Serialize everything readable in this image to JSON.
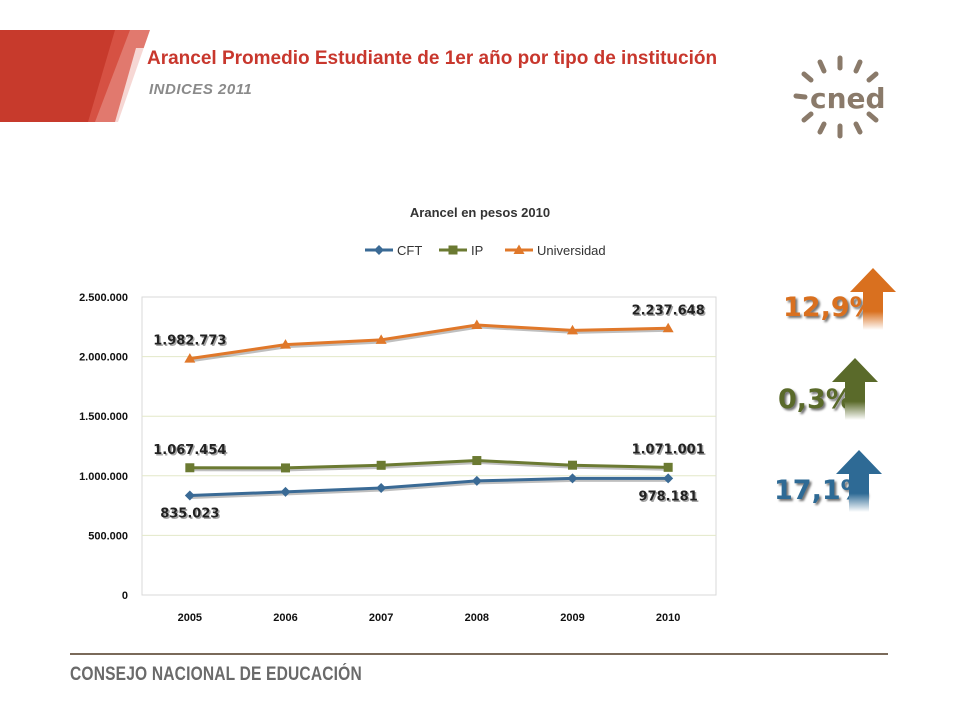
{
  "slide": {
    "title": "Arancel Promedio Estudiante de 1er año por tipo de institución",
    "subtitle": "INDICES 2011",
    "logo_text": "cned",
    "footer": "CONSEJO NACIONAL DE EDUCACIÓN"
  },
  "changes": [
    {
      "label": "12,9%",
      "color": "#d9701f",
      "series": "Universidad"
    },
    {
      "label": "0,3%",
      "color": "#5a6a2a",
      "series": "IP"
    },
    {
      "label": "17,1%",
      "color": "#2e6a95",
      "series": "CFT"
    }
  ],
  "chart_data": {
    "type": "line",
    "title": "Arancel en pesos 2010",
    "categories": [
      "2005",
      "2006",
      "2007",
      "2008",
      "2009",
      "2010"
    ],
    "y_ticks": [
      "2.500.000",
      "2.000.000",
      "1.500.000",
      "1.000.000",
      "500.000",
      "0"
    ],
    "ylim": [
      0,
      2500000
    ],
    "grid": true,
    "legend_position": "top",
    "series": [
      {
        "name": "CFT",
        "color": "#3a6a95",
        "marker": "diamond",
        "values": [
          835023,
          865000,
          898000,
          957000,
          978000,
          978181
        ]
      },
      {
        "name": "IP",
        "color": "#6b7a32",
        "marker": "square",
        "values": [
          1067454,
          1066000,
          1088000,
          1128000,
          1089000,
          1071001
        ]
      },
      {
        "name": "Universidad",
        "color": "#e0782a",
        "marker": "triangle",
        "values": [
          1982773,
          2100000,
          2140000,
          2265000,
          2220000,
          2237648
        ]
      }
    ],
    "data_labels": [
      {
        "series": 2,
        "index": 0,
        "text": "1.982.773"
      },
      {
        "series": 2,
        "index": 5,
        "text": "2.237.648"
      },
      {
        "series": 1,
        "index": 0,
        "text": "1.067.454"
      },
      {
        "series": 1,
        "index": 5,
        "text": "1.071.001"
      },
      {
        "series": 0,
        "index": 0,
        "text": "835.023"
      },
      {
        "series": 0,
        "index": 5,
        "text": "978.181"
      }
    ]
  }
}
